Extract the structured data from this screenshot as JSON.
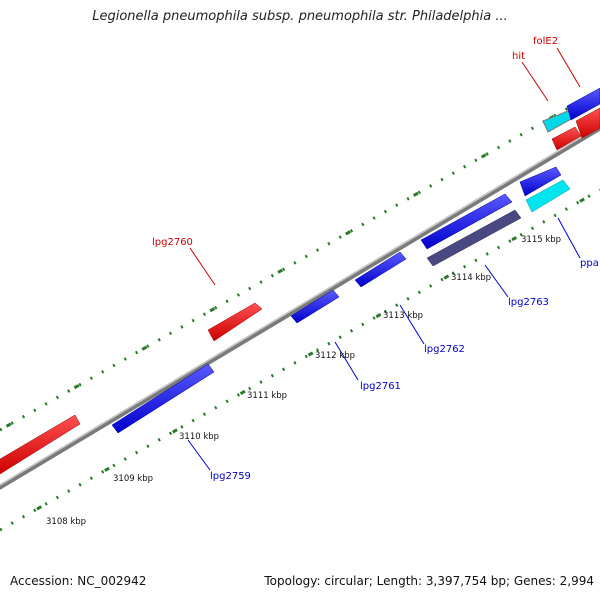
{
  "title": "Legionella pneumophila subsp. pneumophila str. Philadelphia ...",
  "footer": {
    "accession": "Accession: NC_002942",
    "topology": "Topology: circular; Length: 3,397,754 bp; Genes: 2,994"
  },
  "colors": {
    "forward_gene": "#0000ee",
    "reverse_gene": "#ee0000",
    "rna": "#00e5ee",
    "dark_feature": "#4a4880",
    "backbone": "#808080",
    "tick": "#2a7a2a",
    "label_forward": "#0000cc",
    "label_reverse": "#cc0000"
  },
  "scale_labels": [
    "3108 kbp",
    "3109 kbp",
    "3110 kbp",
    "3111 kbp",
    "3112 kbp",
    "3113 kbp",
    "3114 kbp",
    "3115 kbp"
  ],
  "gene_labels": [
    {
      "text": "lpg2759",
      "strand": "forward"
    },
    {
      "text": "lpg2760",
      "strand": "reverse"
    },
    {
      "text": "lpg2761",
      "strand": "forward"
    },
    {
      "text": "lpg2762",
      "strand": "forward"
    },
    {
      "text": "lpg2763",
      "strand": "forward"
    },
    {
      "text": "ppa",
      "strand": "forward"
    },
    {
      "text": "hit",
      "strand": "reverse"
    },
    {
      "text": "folE2",
      "strand": "reverse"
    }
  ]
}
